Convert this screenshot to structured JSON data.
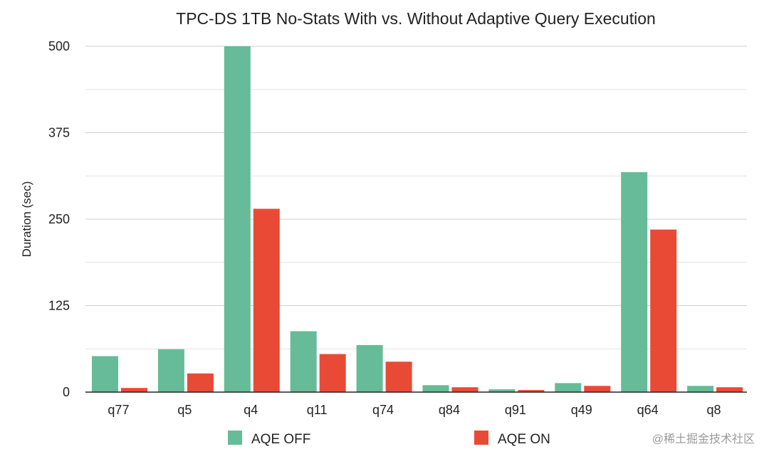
{
  "chart_data": {
    "type": "bar",
    "title": "TPC-DS 1TB No-Stats With vs. Without Adaptive Query Execution",
    "xlabel": "",
    "ylabel": "Duration (sec)",
    "ylim": [
      0,
      500
    ],
    "yticks": [
      "0",
      "125",
      "250",
      "375",
      "500"
    ],
    "grid": true,
    "legend_position": "bottom",
    "categories": [
      "q77",
      "q5",
      "q4",
      "q11",
      "q74",
      "q84",
      "q91",
      "q49",
      "q64",
      "q8"
    ],
    "series": [
      {
        "name": "AQE OFF",
        "color": "#66bb98",
        "values": [
          52,
          62,
          500,
          88,
          68,
          10,
          4,
          13,
          318,
          9
        ]
      },
      {
        "name": "AQE ON",
        "color": "#e94a35",
        "values": [
          6,
          27,
          265,
          55,
          44,
          7,
          3,
          9,
          235,
          7
        ]
      }
    ]
  },
  "watermark": "@稀土掘金技术社区"
}
